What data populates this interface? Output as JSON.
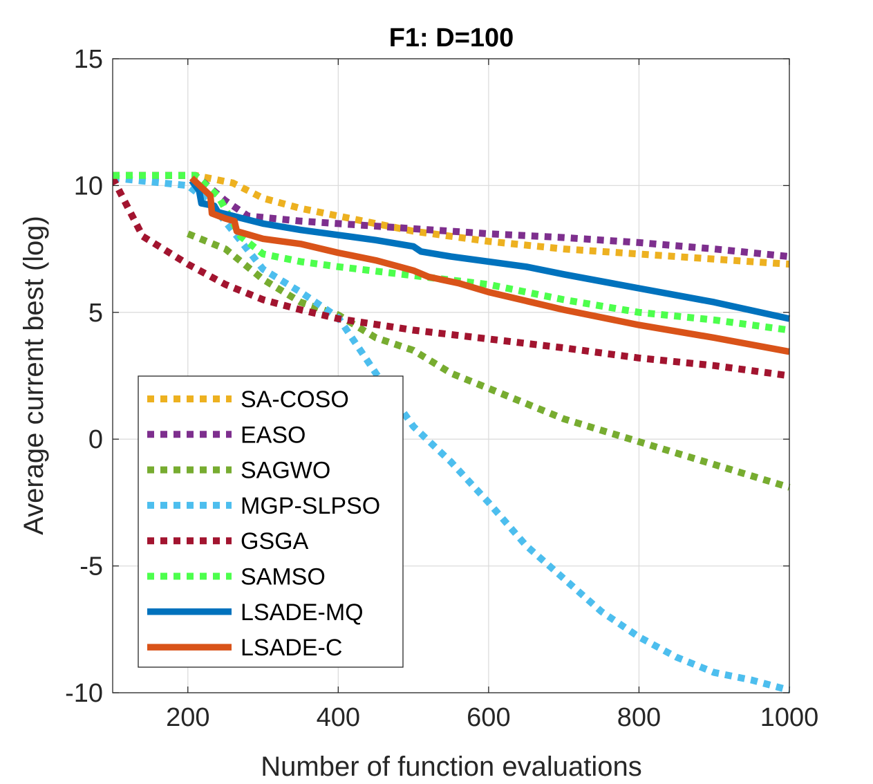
{
  "chart_data": {
    "type": "line",
    "title": "F1: D=100",
    "xlabel": "Number of function evaluations",
    "ylabel": "Average current best (log)",
    "xlim": [
      100,
      1000
    ],
    "ylim": [
      -10,
      15
    ],
    "xticks": [
      200,
      400,
      600,
      800,
      1000
    ],
    "yticks": [
      -10,
      -5,
      0,
      5,
      10,
      15
    ],
    "xtick_labels": [
      "200",
      "400",
      "600",
      "800",
      "1000"
    ],
    "ytick_labels": [
      "-10",
      "-5",
      "0",
      "5",
      "10",
      "15"
    ],
    "grid": true,
    "legend_position": "lower-left",
    "series": [
      {
        "name": "SA-COSO",
        "color": "#EDB120",
        "style": "dotted",
        "x": [
          100,
          210,
          260,
          300,
          350,
          400,
          500,
          600,
          700,
          800,
          900,
          1000
        ],
        "y": [
          10.4,
          10.4,
          10.1,
          9.5,
          9.1,
          8.8,
          8.2,
          7.8,
          7.5,
          7.3,
          7.1,
          6.9
        ]
      },
      {
        "name": "EASO",
        "color": "#7E2F8E",
        "style": "dotted",
        "x": [
          100,
          210,
          250,
          280,
          350,
          400,
          500,
          600,
          700,
          800,
          900,
          1000
        ],
        "y": [
          10.4,
          10.4,
          9.4,
          8.8,
          8.6,
          8.5,
          8.3,
          8.1,
          7.95,
          7.75,
          7.5,
          7.2
        ]
      },
      {
        "name": "SAGWO",
        "color": "#77AC30",
        "style": "dotted",
        "x": [
          200,
          250,
          300,
          350,
          400,
          450,
          500,
          550,
          600,
          650,
          700,
          800,
          900,
          1000
        ],
        "y": [
          8.1,
          7.5,
          6.3,
          5.4,
          4.9,
          4.0,
          3.5,
          2.6,
          2.0,
          1.4,
          0.8,
          -0.1,
          -1.0,
          -1.9
        ]
      },
      {
        "name": "MGP-SLPSO",
        "color": "#4DBEEE",
        "style": "dotted",
        "x": [
          100,
          200,
          230,
          260,
          300,
          350,
          400,
          450,
          500,
          550,
          600,
          650,
          700,
          750,
          800,
          850,
          900,
          950,
          1000
        ],
        "y": [
          10.3,
          10.0,
          9.3,
          8.2,
          6.7,
          5.8,
          4.8,
          2.6,
          0.5,
          -0.9,
          -2.5,
          -4.2,
          -5.5,
          -6.8,
          -7.8,
          -8.6,
          -9.2,
          -9.5,
          -9.9
        ]
      },
      {
        "name": "GSGA",
        "color": "#A2142F",
        "style": "dotted",
        "x": [
          100,
          140,
          200,
          250,
          300,
          350,
          400,
          500,
          600,
          700,
          800,
          900,
          1000
        ],
        "y": [
          10.3,
          8.0,
          6.9,
          6.1,
          5.5,
          5.1,
          4.75,
          4.3,
          3.95,
          3.6,
          3.2,
          2.9,
          2.5
        ]
      },
      {
        "name": "SAMSO",
        "color": "#4DFF4D",
        "style": "dotted",
        "x": [
          100,
          210,
          240,
          270,
          300,
          350,
          400,
          500,
          600,
          700,
          800,
          900,
          1000
        ],
        "y": [
          10.4,
          10.4,
          9.6,
          8.0,
          7.3,
          7.0,
          6.8,
          6.45,
          6.1,
          5.5,
          5.0,
          4.7,
          4.3
        ]
      },
      {
        "name": "LSADE-MQ",
        "color": "#0072BD",
        "style": "solid",
        "x": [
          205,
          215,
          218,
          235,
          240,
          260,
          300,
          350,
          400,
          450,
          500,
          510,
          550,
          600,
          650,
          700,
          800,
          900,
          1000
        ],
        "y": [
          10.2,
          9.8,
          9.3,
          9.2,
          8.95,
          8.8,
          8.5,
          8.25,
          8.05,
          7.85,
          7.6,
          7.4,
          7.2,
          7.0,
          6.8,
          6.5,
          5.95,
          5.4,
          4.75
        ]
      },
      {
        "name": "LSADE-C",
        "color": "#D95319",
        "style": "solid",
        "x": [
          205,
          230,
          232,
          250,
          262,
          265,
          300,
          350,
          400,
          450,
          500,
          520,
          560,
          600,
          650,
          700,
          800,
          900,
          1000
        ],
        "y": [
          10.3,
          9.6,
          8.9,
          8.7,
          8.6,
          8.2,
          7.9,
          7.7,
          7.35,
          7.05,
          6.65,
          6.4,
          6.15,
          5.8,
          5.45,
          5.1,
          4.5,
          4.0,
          3.45
        ]
      }
    ]
  }
}
